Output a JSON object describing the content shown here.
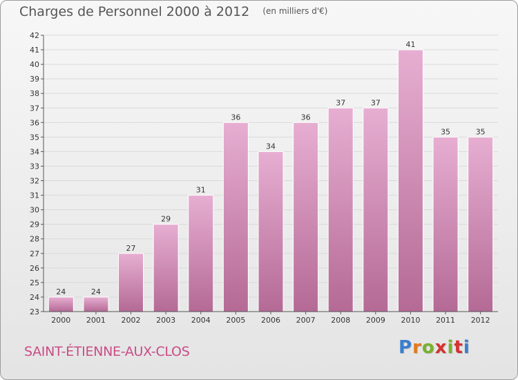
{
  "title": "Charges de Personnel 2000 à 2012",
  "subtitle": "(en milliers d'€)",
  "commune": "SAINT-ÉTIENNE-AUX-CLOS",
  "brand": {
    "text": "Proxiti",
    "letter_colors": [
      "#3a7fcf",
      "#e27a1a",
      "#7ab12d",
      "#d6322e",
      "#7ab12d",
      "#d6322e",
      "#3a7fcf"
    ]
  },
  "colors": {
    "bar_fill_top": "#e7aed2",
    "bar_fill_bottom": "#b46a95",
    "bar_stroke": "#ffffff",
    "grid": "#d9d9d9",
    "axis_text": "#333333",
    "title_text": "#555555",
    "commune_text": "#c94d86"
  },
  "chart_data": {
    "type": "bar",
    "categories": [
      "2000",
      "2001",
      "2002",
      "2003",
      "2004",
      "2005",
      "2006",
      "2007",
      "2008",
      "2009",
      "2010",
      "2011",
      "2012"
    ],
    "values": [
      24,
      24,
      27,
      29,
      31,
      36,
      34,
      36,
      37,
      37,
      41,
      35,
      35
    ],
    "ylim": [
      23,
      42
    ],
    "yticks": [
      23,
      24,
      25,
      26,
      27,
      28,
      29,
      30,
      31,
      32,
      33,
      34,
      35,
      36,
      37,
      38,
      39,
      40,
      41,
      42
    ],
    "grid": true,
    "data_labels": true
  }
}
